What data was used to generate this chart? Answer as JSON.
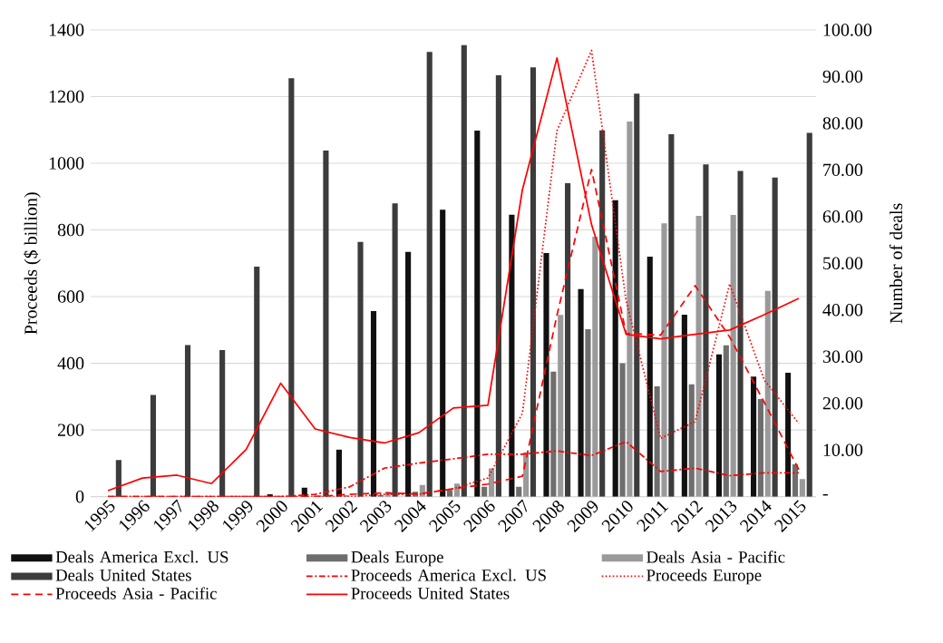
{
  "chart_data": {
    "type": "bar",
    "ylabel": "Proceeds ($ billion)",
    "y2label": "Number of deals",
    "categories": [
      "1995",
      "1996",
      "1997",
      "1998",
      "1999",
      "2000",
      "2001",
      "2002",
      "2003",
      "2004",
      "2005",
      "2006",
      "2007",
      "2008",
      "2009",
      "2010",
      "2011",
      "2012",
      "2013",
      "2014",
      "2015"
    ],
    "series": [
      {
        "name": "Deals America Excl. US",
        "color": "#111111",
        "values": [
          0,
          0,
          0,
          0,
          null,
          7,
          27,
          141,
          557,
          734,
          861,
          1098,
          846,
          731,
          623,
          889,
          720,
          546,
          427,
          360,
          372
        ]
      },
      {
        "name": "Deals Europe",
        "color": "#6e6e6e",
        "values": [
          0,
          0,
          0,
          0,
          0,
          0,
          null,
          4,
          5,
          15,
          20,
          30,
          30,
          375,
          502,
          400,
          331,
          337,
          454,
          293,
          97
        ]
      },
      {
        "name": "Deals Asia - Pacific",
        "color": "#9a9a9a",
        "values": [
          0,
          0,
          0,
          0,
          0,
          null,
          4,
          null,
          15,
          35,
          39,
          85,
          133,
          545,
          780,
          1125,
          820,
          842,
          845,
          617,
          53
        ]
      },
      {
        "name": "Deals United States",
        "color": "#3c3c3c",
        "values": [
          110,
          305,
          455,
          440,
          690,
          1255,
          1038,
          764,
          880,
          1334,
          1355,
          1264,
          1288,
          940,
          1099,
          1209,
          1087,
          997,
          977,
          957,
          1091
        ]
      },
      {
        "name": "Proceeds America Excl. US",
        "type": "line",
        "axis": "y2",
        "line_style": "dashdot",
        "color": "#ff0000",
        "values": [
          0,
          0,
          0,
          0,
          0,
          0,
          0.5,
          2.1,
          6.1,
          7.2,
          8.1,
          9.1,
          9.1,
          9.8,
          8.8,
          11.8,
          5.4,
          6.1,
          4.5,
          5.1,
          5.1
        ]
      },
      {
        "name": "Proceeds Europe",
        "type": "line",
        "axis": "y2",
        "line_style": "dotted",
        "color": "#ff0000",
        "values": [
          0,
          0,
          0,
          0,
          0,
          0,
          0,
          0,
          0.5,
          0.5,
          1.7,
          4,
          17.9,
          78.4,
          95.6,
          42,
          12.5,
          16.1,
          45.6,
          25,
          15.7
        ]
      },
      {
        "name": "Proceeds Asia - Pacific",
        "type": "line",
        "axis": "y2",
        "line_style": "dashed",
        "color": "#ff0000",
        "values": [
          0,
          0,
          0,
          0,
          0,
          0,
          0,
          0.5,
          0.8,
          0.6,
          1.7,
          2.7,
          4.4,
          38.9,
          70.1,
          35,
          34.6,
          45.2,
          34.2,
          20.2,
          5.8
        ]
      },
      {
        "name": "Proceeds United States",
        "type": "line",
        "axis": "y2",
        "line_style": "solid",
        "color": "#ff0000",
        "values": [
          1.3,
          4.0,
          4.6,
          2.8,
          10.1,
          24.3,
          14.5,
          12.7,
          11.5,
          13.7,
          19.0,
          19.6,
          65.8,
          94.0,
          58.3,
          34.8,
          33.8,
          34.8,
          35.7,
          39.0,
          42.5
        ]
      }
    ],
    "ylim": [
      0,
      1400
    ],
    "yticks": [
      0,
      200,
      400,
      600,
      800,
      1000,
      1200,
      1400
    ],
    "y2lim": [
      0,
      100
    ],
    "y2ticks": [
      {
        "value": 0,
        "label": "-"
      },
      {
        "value": 10,
        "label": "10.00"
      },
      {
        "value": 20,
        "label": "20.00"
      },
      {
        "value": 30,
        "label": "30.00"
      },
      {
        "value": 40,
        "label": "40.00"
      },
      {
        "value": 50,
        "label": "50.00"
      },
      {
        "value": 60,
        "label": "60.00"
      },
      {
        "value": 70,
        "label": "70.00"
      },
      {
        "value": 80,
        "label": "80.00"
      },
      {
        "value": 90,
        "label": "90.00"
      },
      {
        "value": 100,
        "label": "100.00"
      }
    ],
    "grid": "y",
    "legend": "bottom"
  }
}
